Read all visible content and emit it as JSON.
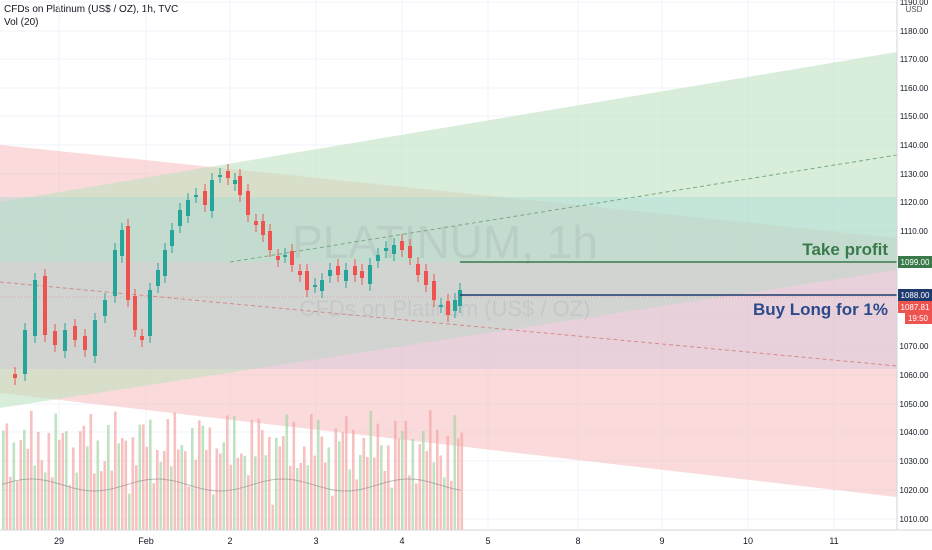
{
  "header": {
    "title": "CFDs on Platinum (US$ / OZ), 1h, TVC",
    "volume_label": "Vol (20)"
  },
  "watermark": {
    "symbol": "PLATINUM, 1h",
    "description": "CFDs on Platinum (US$ / OZ)"
  },
  "annotations": {
    "take_profit": "Take profit",
    "buy_long": "Buy Long for 1%"
  },
  "price_axis": {
    "currency": "USD",
    "ticks": [
      "1190.00",
      "1180.00",
      "1170.00",
      "1160.00",
      "1150.00",
      "1140.00",
      "1130.00",
      "1120.00",
      "1110.00",
      "1100.00",
      "1090.00",
      "1080.00",
      "1070.00",
      "1060.00",
      "1050.00",
      "1040.00",
      "1030.00",
      "1020.00",
      "1010.00"
    ],
    "labels": {
      "take_profit_price": "1099.00",
      "entry_price": "1088.00",
      "last_price": "1087.81",
      "countdown": "19:50"
    }
  },
  "time_axis": {
    "ticks": [
      "29",
      "Feb",
      "2",
      "3",
      "4",
      "5",
      "8",
      "9",
      "10",
      "11"
    ]
  },
  "colors": {
    "green_zone": "#c8e6c9",
    "red_zone": "#f8c9c9",
    "bull": "#26a69a",
    "bear": "#ef5350",
    "take_profit_text": "#3a7a4a",
    "buy_long_text": "#2d4a8a",
    "entry_line": "#1e3a6e"
  },
  "chart_data": {
    "type": "candlestick",
    "y_unit": "USD",
    "ylim": [
      1005,
      1192
    ],
    "x_labels": [
      "29",
      "Feb",
      "2",
      "3",
      "4",
      "5",
      "8",
      "9",
      "10",
      "11"
    ],
    "take_profit": 1099.0,
    "entry": 1088.0,
    "last_price": 1087.81
  }
}
